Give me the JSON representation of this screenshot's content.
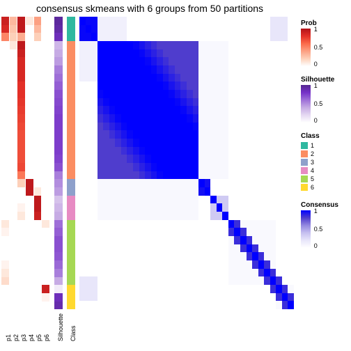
{
  "title": "consensus skmeans with 6 groups from 50 partitions",
  "dimensions": {
    "n_samples": 36,
    "n_prob_tracks": 6
  },
  "tracks": {
    "prob_labels": [
      "p1",
      "p2",
      "p3",
      "p4",
      "p5",
      "p6"
    ],
    "silhouette_label": "Silhouette",
    "class_label": "Class"
  },
  "colors": {
    "prob_gradient": [
      "#ffffff",
      "#fdd0b9",
      "#fca082",
      "#fb6a4a",
      "#e32f27",
      "#b11218"
    ],
    "silhouette_gradient": [
      "#ffffff",
      "#e5d8f2",
      "#c6abe4",
      "#9e6fd8",
      "#7530c8",
      "#54278f"
    ],
    "consensus_gradient": [
      "#ffffff",
      "#e8e6fa",
      "#c6c0f0",
      "#9388e0",
      "#4f3dcd",
      "#0000ff"
    ],
    "class_colors": [
      "#2fb8a0",
      "#fb8d62",
      "#8ea0cb",
      "#e78bc3",
      "#a6d854",
      "#ffd92f"
    ]
  },
  "legends": {
    "prob": {
      "title": "Prob",
      "ticks": [
        "1",
        "0.5",
        "0"
      ]
    },
    "silhouette": {
      "title": "Silhouette",
      "ticks": [
        "1",
        "0.5",
        "0"
      ]
    },
    "class": {
      "title": "Class",
      "items": [
        "1",
        "2",
        "3",
        "4",
        "5",
        "6"
      ]
    },
    "consensus": {
      "title": "Consensus",
      "ticks": [
        "1",
        "0.5",
        "0"
      ]
    }
  },
  "class_assignment": [
    0,
    0,
    0,
    1,
    1,
    1,
    1,
    1,
    1,
    1,
    1,
    1,
    1,
    1,
    1,
    1,
    1,
    1,
    1,
    1,
    2,
    2,
    3,
    3,
    3,
    4,
    4,
    4,
    4,
    4,
    4,
    4,
    4,
    5,
    5,
    5
  ],
  "silhouette": [
    0.95,
    0.92,
    0.85,
    0.35,
    0.4,
    0.45,
    0.55,
    0.6,
    0.65,
    0.7,
    0.72,
    0.74,
    0.76,
    0.76,
    0.76,
    0.76,
    0.76,
    0.74,
    0.7,
    0.55,
    0.5,
    0.45,
    0.3,
    0.35,
    0.4,
    0.6,
    0.65,
    0.7,
    0.7,
    0.68,
    0.62,
    0.55,
    0.4,
    0.1,
    0.85,
    0.9
  ],
  "prob_tracks": [
    [
      0.9,
      0.3,
      0.95,
      0.1,
      0.4,
      0
    ],
    [
      0.85,
      0.25,
      0.95,
      0,
      0.3,
      0
    ],
    [
      0.5,
      0.2,
      0.35,
      0,
      0.2,
      0
    ],
    [
      0,
      0.1,
      0.95,
      0,
      0,
      0
    ],
    [
      0,
      0,
      0.9,
      0,
      0,
      0
    ],
    [
      0,
      0,
      0.85,
      0,
      0,
      0
    ],
    [
      0,
      0,
      0.85,
      0,
      0,
      0
    ],
    [
      0,
      0,
      0.85,
      0,
      0,
      0
    ],
    [
      0,
      0,
      0.8,
      0,
      0,
      0
    ],
    [
      0,
      0,
      0.8,
      0,
      0,
      0
    ],
    [
      0,
      0,
      0.78,
      0,
      0,
      0
    ],
    [
      0,
      0,
      0.76,
      0,
      0,
      0
    ],
    [
      0,
      0,
      0.74,
      0,
      0,
      0
    ],
    [
      0,
      0,
      0.72,
      0,
      0,
      0
    ],
    [
      0,
      0,
      0.7,
      0,
      0,
      0
    ],
    [
      0,
      0,
      0.7,
      0,
      0,
      0
    ],
    [
      0,
      0,
      0.7,
      0,
      0,
      0
    ],
    [
      0,
      0,
      0.7,
      0,
      0,
      0
    ],
    [
      0,
      0,
      0.72,
      0,
      0,
      0
    ],
    [
      0,
      0,
      0.55,
      0,
      0,
      0
    ],
    [
      0,
      0,
      0.2,
      0.95,
      0,
      0
    ],
    [
      0,
      0,
      0,
      0.95,
      0.1,
      0
    ],
    [
      0,
      0,
      0,
      0,
      0.95,
      0
    ],
    [
      0,
      0,
      0.05,
      0,
      0.95,
      0
    ],
    [
      0,
      0,
      0.1,
      0,
      0.9,
      0
    ],
    [
      0.1,
      0,
      0,
      0,
      0,
      0.1
    ],
    [
      0.05,
      0,
      0,
      0,
      0,
      0
    ],
    [
      0,
      0,
      0,
      0,
      0,
      0
    ],
    [
      0,
      0,
      0,
      0,
      0,
      0
    ],
    [
      0,
      0,
      0,
      0,
      0,
      0
    ],
    [
      0.05,
      0,
      0,
      0,
      0,
      0
    ],
    [
      0.1,
      0,
      0,
      0,
      0,
      0
    ],
    [
      0.15,
      0,
      0,
      0,
      0,
      0
    ],
    [
      0,
      0,
      0,
      0,
      0,
      0.9
    ],
    [
      0,
      0,
      0,
      0,
      0,
      0.05
    ],
    [
      0,
      0,
      0,
      0,
      0,
      0
    ]
  ],
  "consensus_blocks": [
    {
      "r0": 0,
      "r1": 3,
      "c0": 0,
      "c1": 3,
      "v": 0.98
    },
    {
      "r0": 3,
      "r1": 20,
      "c0": 3,
      "c1": 20,
      "v": 0.8
    },
    {
      "r0": 3,
      "r1": 13,
      "c0": 3,
      "c1": 13,
      "v": 0.55
    },
    {
      "r0": 0,
      "r1": 3,
      "c0": 3,
      "c1": 8,
      "v": 0.12
    },
    {
      "r0": 3,
      "r1": 8,
      "c0": 0,
      "c1": 3,
      "v": 0.12
    },
    {
      "r0": 0,
      "r1": 3,
      "c0": 32,
      "c1": 35,
      "v": 0.2
    },
    {
      "r0": 32,
      "r1": 35,
      "c0": 0,
      "c1": 3,
      "v": 0.2
    },
    {
      "r0": 20,
      "r1": 22,
      "c0": 20,
      "c1": 22,
      "v": 0.95
    },
    {
      "r0": 22,
      "r1": 25,
      "c0": 22,
      "c1": 25,
      "v": 0.35
    },
    {
      "r0": 20,
      "r1": 25,
      "c0": 3,
      "c1": 20,
      "v": 0.06
    },
    {
      "r0": 3,
      "r1": 20,
      "c0": 20,
      "c1": 25,
      "v": 0.06
    },
    {
      "r0": 25,
      "r1": 33,
      "c0": 25,
      "c1": 33,
      "v": 0.05
    },
    {
      "r0": 33,
      "r1": 36,
      "c0": 33,
      "c1": 36,
      "v": 0.05
    }
  ],
  "consensus_diag": 1.0
}
